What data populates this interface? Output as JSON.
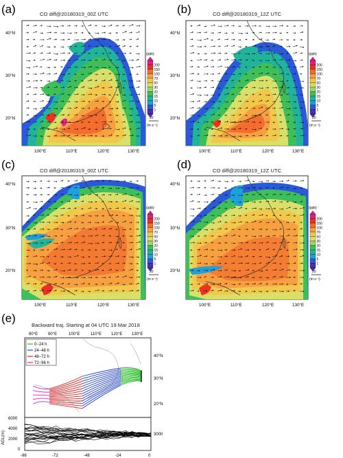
{
  "panels": [
    {
      "letter": "(a)",
      "title": "CO  diff@20180319_00Z UTC",
      "unit": "(ppb)",
      "ref_value": "20",
      "ref_unit": "(m s⁻¹)"
    },
    {
      "letter": "(b)",
      "title": "CO  diff@20180319_12Z UTC",
      "unit": "(ppb)",
      "ref_value": "20",
      "ref_unit": "(m s⁻¹)"
    },
    {
      "letter": "(c)",
      "title": "CO  diff@20180319_00Z UTC",
      "unit": "(ppb)",
      "ref_value": "20",
      "ref_unit": "(m s⁻¹)"
    },
    {
      "letter": "(d)",
      "title": "CO  diff@20180319_12Z UTC",
      "unit": "(ppb)",
      "ref_value": "20",
      "ref_unit": "(m s⁻¹)"
    }
  ],
  "map_axes": {
    "lon_ticks": [
      "100°E",
      "110°E",
      "120°E",
      "130°E"
    ],
    "lat_ticks": [
      "40°N",
      "30°N",
      "20°N"
    ]
  },
  "colorbar": {
    "levels": [
      "200",
      "150",
      "100",
      "70",
      "50",
      "30",
      "20",
      "15",
      "10",
      "5",
      "1"
    ],
    "colors": [
      "#e0208a",
      "#f03020",
      "#f46d2c",
      "#f7a040",
      "#f2c84b",
      "#d8e06a",
      "#9ed46a",
      "#3fbf5a",
      "#20b49c",
      "#1ea0d8",
      "#2a5ad8",
      "#4b2fb0"
    ]
  },
  "panel_e": {
    "letter": "(e)",
    "title": "Backward traj. Starting at 04 UTC 19 Mar 2018",
    "lon_ticks": [
      "80°E",
      "90°E",
      "100°E",
      "110°E",
      "120°E",
      "130°E"
    ],
    "lat_ticks": [
      "40°N",
      "30°N",
      "20°N"
    ],
    "legend": [
      {
        "label": "0−24 h",
        "color": "#22bb22"
      },
      {
        "label": "24−48 h",
        "color": "#2040d8"
      },
      {
        "label": "48−72 h",
        "color": "#e02020"
      },
      {
        "label": "72−96 h",
        "color": "#e020e0"
      }
    ],
    "height_panel": {
      "ylabel": "AGL(m)",
      "y_ticks": [
        "6000",
        "4000",
        "2000",
        "0"
      ],
      "right_label": "3000",
      "x_ticks": [
        "-96",
        "-72",
        "-48",
        "-24",
        "0"
      ]
    }
  }
}
